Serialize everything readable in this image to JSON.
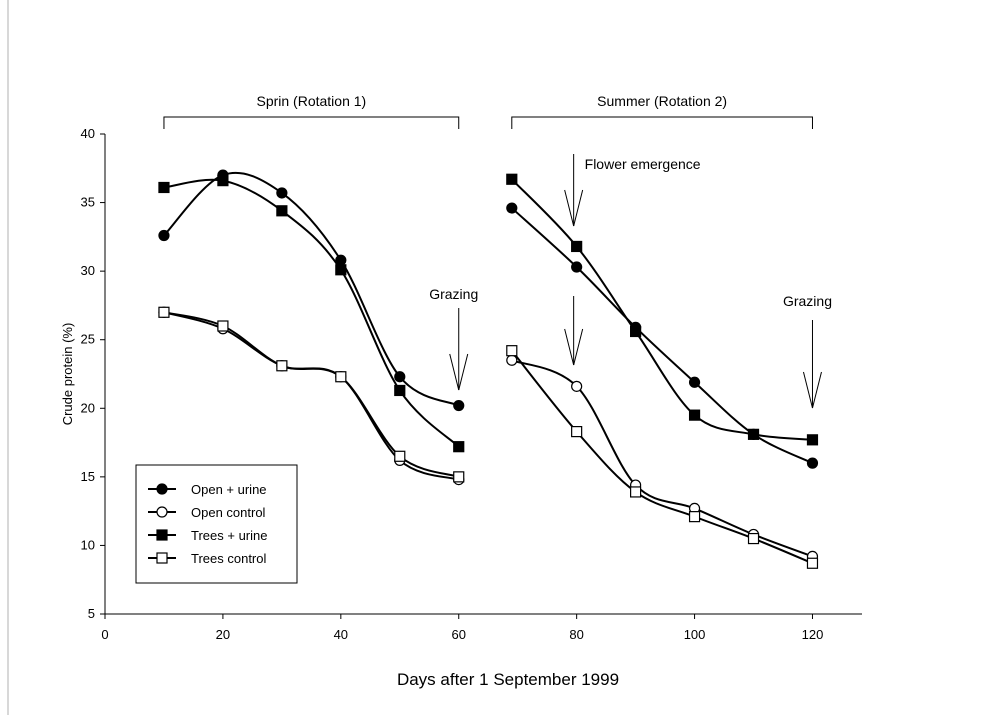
{
  "chart_data": {
    "type": "line",
    "title": "",
    "xlabel": "Days after 1 September 1999",
    "ylabel": "Crude protein (%)",
    "xlim": [
      0,
      125
    ],
    "ylim": [
      5,
      40
    ],
    "x_ticks": [
      0,
      20,
      40,
      60,
      80,
      100,
      120
    ],
    "y_ticks": [
      5,
      10,
      15,
      20,
      25,
      30,
      35,
      40
    ],
    "grid": false,
    "legend_position": "lower-left",
    "period_labels": [
      {
        "label": "Sprin (Rotation 1)",
        "x_start": 10,
        "x_end": 60
      },
      {
        "label": "Summer (Rotation 2)",
        "x_start": 69,
        "x_end": 120
      }
    ],
    "annotations": [
      {
        "text": "Flower emergence",
        "x": 80
      },
      {
        "text": "Grazing",
        "x": 60
      },
      {
        "text": "Grazing",
        "x": 120
      }
    ],
    "series": [
      {
        "name": "Open + urine",
        "marker": "filled-circle",
        "segments": [
          {
            "x": [
              10,
              20,
              30,
              40,
              50,
              60
            ],
            "y": [
              32.6,
              37.0,
              35.7,
              30.8,
              22.3,
              20.2
            ]
          },
          {
            "x": [
              69,
              80,
              90,
              100,
              110,
              120
            ],
            "y": [
              34.6,
              30.3,
              25.9,
              21.9,
              18.1,
              16.0
            ]
          }
        ]
      },
      {
        "name": "Open control",
        "marker": "open-circle",
        "segments": [
          {
            "x": [
              10,
              20,
              30,
              40,
              50,
              60
            ],
            "y": [
              27.0,
              25.8,
              23.1,
              22.3,
              16.2,
              14.8
            ]
          },
          {
            "x": [
              69,
              80,
              90,
              100,
              110,
              120
            ],
            "y": [
              23.5,
              21.6,
              14.4,
              12.7,
              10.8,
              9.2
            ]
          }
        ]
      },
      {
        "name": "Trees + urine",
        "marker": "filled-square",
        "segments": [
          {
            "x": [
              10,
              20,
              30,
              40,
              50,
              60
            ],
            "y": [
              36.1,
              36.6,
              34.4,
              30.1,
              21.3,
              17.2
            ]
          },
          {
            "x": [
              69,
              80,
              90,
              100,
              110,
              120
            ],
            "y": [
              36.7,
              31.8,
              25.6,
              19.5,
              18.1,
              17.7
            ]
          }
        ]
      },
      {
        "name": "Trees control",
        "marker": "open-square",
        "segments": [
          {
            "x": [
              10,
              20,
              30,
              40,
              50,
              60
            ],
            "y": [
              27.0,
              26.0,
              23.1,
              22.3,
              16.5,
              15.0
            ]
          },
          {
            "x": [
              69,
              80,
              90,
              100,
              110,
              120
            ],
            "y": [
              24.2,
              18.3,
              13.9,
              12.1,
              10.5,
              8.7
            ]
          }
        ]
      }
    ]
  }
}
